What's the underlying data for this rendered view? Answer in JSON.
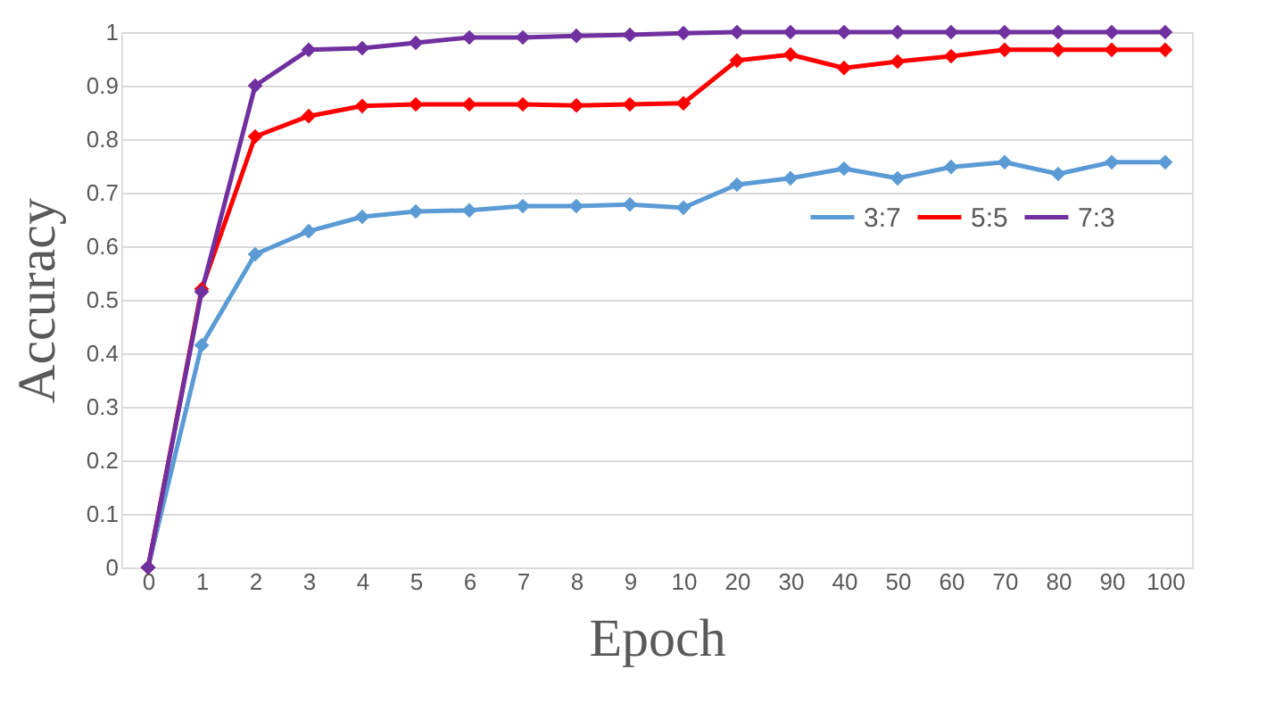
{
  "chart_data": {
    "type": "line",
    "xlabel": "Epoch",
    "ylabel": "Accuracy",
    "categories": [
      "0",
      "1",
      "2",
      "3",
      "4",
      "5",
      "6",
      "7",
      "8",
      "9",
      "10",
      "20",
      "30",
      "40",
      "50",
      "60",
      "70",
      "80",
      "90",
      "100"
    ],
    "series": [
      {
        "name": "3:7",
        "color": "#5b9bd5",
        "values": [
          0,
          0.415,
          0.585,
          0.628,
          0.655,
          0.665,
          0.667,
          0.675,
          0.675,
          0.678,
          0.672,
          0.715,
          0.727,
          0.745,
          0.727,
          0.748,
          0.757,
          0.735,
          0.757,
          0.757
        ]
      },
      {
        "name": "5:5",
        "color": "#ff0000",
        "values": [
          0,
          0.52,
          0.805,
          0.843,
          0.862,
          0.865,
          0.865,
          0.865,
          0.863,
          0.865,
          0.867,
          0.947,
          0.958,
          0.933,
          0.945,
          0.955,
          0.967,
          0.967,
          0.967,
          0.967
        ]
      },
      {
        "name": "7:3",
        "color": "#7030a0",
        "values": [
          0,
          0.515,
          0.9,
          0.967,
          0.97,
          0.98,
          0.99,
          0.99,
          0.993,
          0.995,
          0.998,
          1,
          1,
          1,
          1,
          1,
          1,
          1,
          1,
          1
        ]
      }
    ],
    "ylim": [
      0,
      1
    ],
    "yticks": [
      0,
      0.1,
      0.2,
      0.3,
      0.4,
      0.5,
      0.6,
      0.7,
      0.8,
      0.9,
      1
    ],
    "grid": "y",
    "legend": "right",
    "marker": "diamond",
    "line_style": "solid"
  }
}
